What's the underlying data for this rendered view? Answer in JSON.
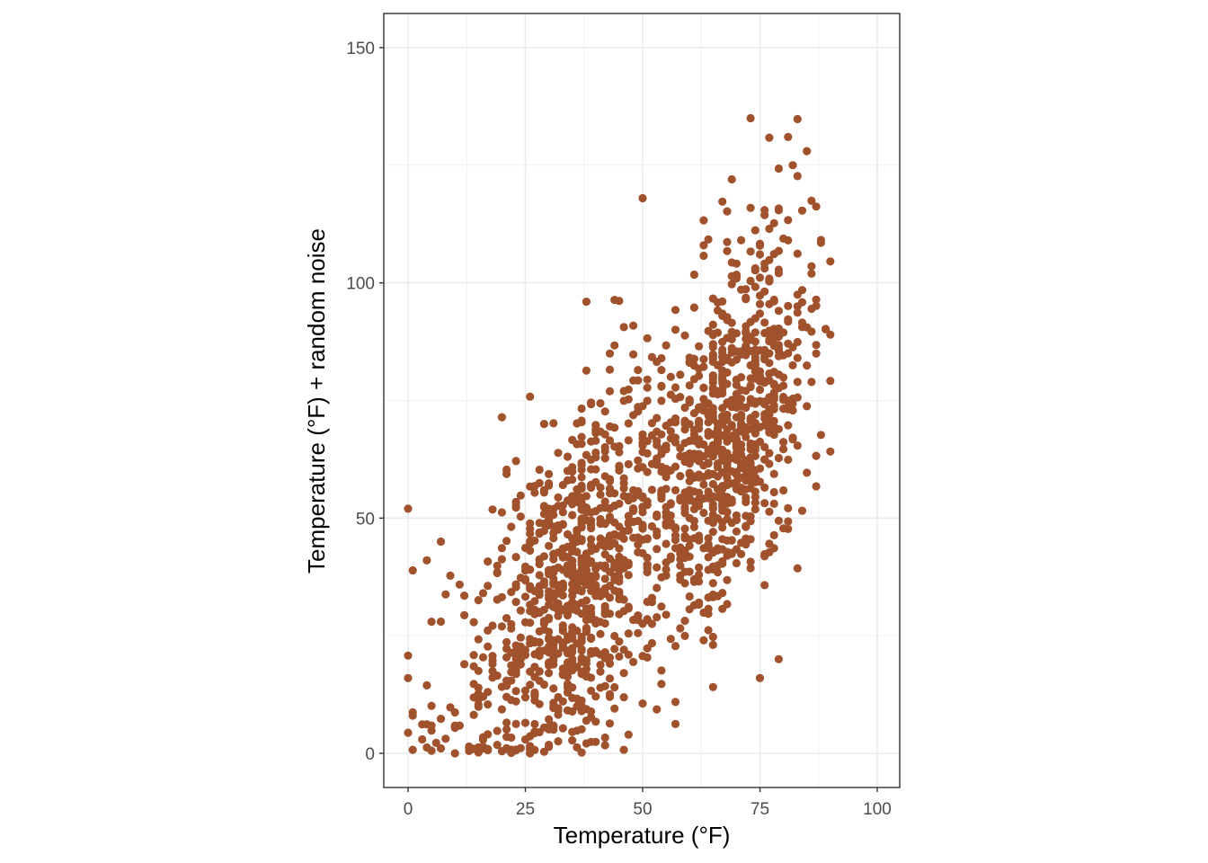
{
  "chart_data": {
    "type": "scatter",
    "title": "",
    "xlabel": "Temperature (°F)",
    "ylabel": "Temperature (°F) + random noise",
    "xlim": [
      -5,
      105
    ],
    "ylim": [
      -7,
      157
    ],
    "x_ticks": [
      0,
      25,
      50,
      75,
      100
    ],
    "x_tick_labels": [
      "0",
      "25",
      "50",
      "75",
      "100"
    ],
    "y_ticks": [
      0,
      50,
      100,
      150
    ],
    "y_tick_labels": [
      "0",
      "50",
      "100",
      "150"
    ],
    "grid": true,
    "legend": "none",
    "point_color": "#A0522D",
    "approx_point_count": 1700,
    "notable_points": [
      {
        "x": 73,
        "y": 135
      },
      {
        "x": 81,
        "y": 131
      },
      {
        "x": 85,
        "y": 128
      },
      {
        "x": 82,
        "y": 125
      },
      {
        "x": 69,
        "y": 122
      },
      {
        "x": 50,
        "y": 118
      },
      {
        "x": 0,
        "y": 52
      },
      {
        "x": 0,
        "y": 16
      },
      {
        "x": 10,
        "y": 0
      },
      {
        "x": 26,
        "y": 0
      },
      {
        "x": 38,
        "y": 96
      },
      {
        "x": 90,
        "y": 89
      },
      {
        "x": 79,
        "y": 20
      },
      {
        "x": 75,
        "y": 16
      },
      {
        "x": 7,
        "y": 45
      },
      {
        "x": 4,
        "y": 41
      }
    ],
    "trend": {
      "description": "positive linear relationship, y ≈ x + noise (sd ≈ 20)",
      "x_range": [
        0,
        90
      ]
    }
  },
  "axes": {
    "x_title": "Temperature (°F)",
    "y_title": "Temperature (°F) + random noise"
  }
}
